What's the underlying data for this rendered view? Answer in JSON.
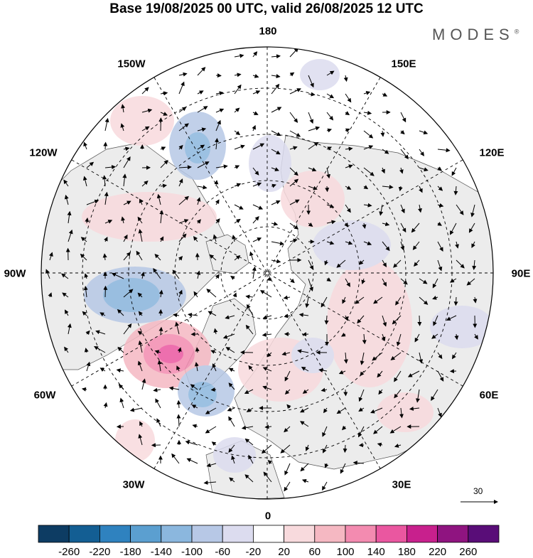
{
  "title": "Base 19/08/2025 00 UTC, valid 26/08/2025 12 UTC",
  "brand": "MODES",
  "brand_mark": "®",
  "longitude_labels": {
    "lon_180": "180",
    "lon_150e": "150E",
    "lon_120e": "120E",
    "lon_90e": "90E",
    "lon_60e": "60E",
    "lon_30e": "30E",
    "lon_0": "0",
    "lon_30w": "30W",
    "lon_60w": "60W",
    "lon_90w": "90W",
    "lon_120w": "120W",
    "lon_150w": "150W"
  },
  "vector_scale_label": "30",
  "colorbar": {
    "labels": [
      "-260",
      "-220",
      "-180",
      "-140",
      "-100",
      "-60",
      "-20",
      "20",
      "60",
      "100",
      "140",
      "180",
      "220",
      "260"
    ],
    "colors": [
      "#0d3c63",
      "#135e93",
      "#2f82bf",
      "#5b9fd0",
      "#8bb7de",
      "#b7c8e6",
      "#dcdcef",
      "#ffffff",
      "#f8dadd",
      "#f5b8c2",
      "#f38bb0",
      "#ea57a0",
      "#c8208d",
      "#8f1480",
      "#590d78"
    ]
  },
  "colors": {
    "land": "#ececec",
    "ocean": "#ffffff",
    "graticule": "#000000"
  }
}
